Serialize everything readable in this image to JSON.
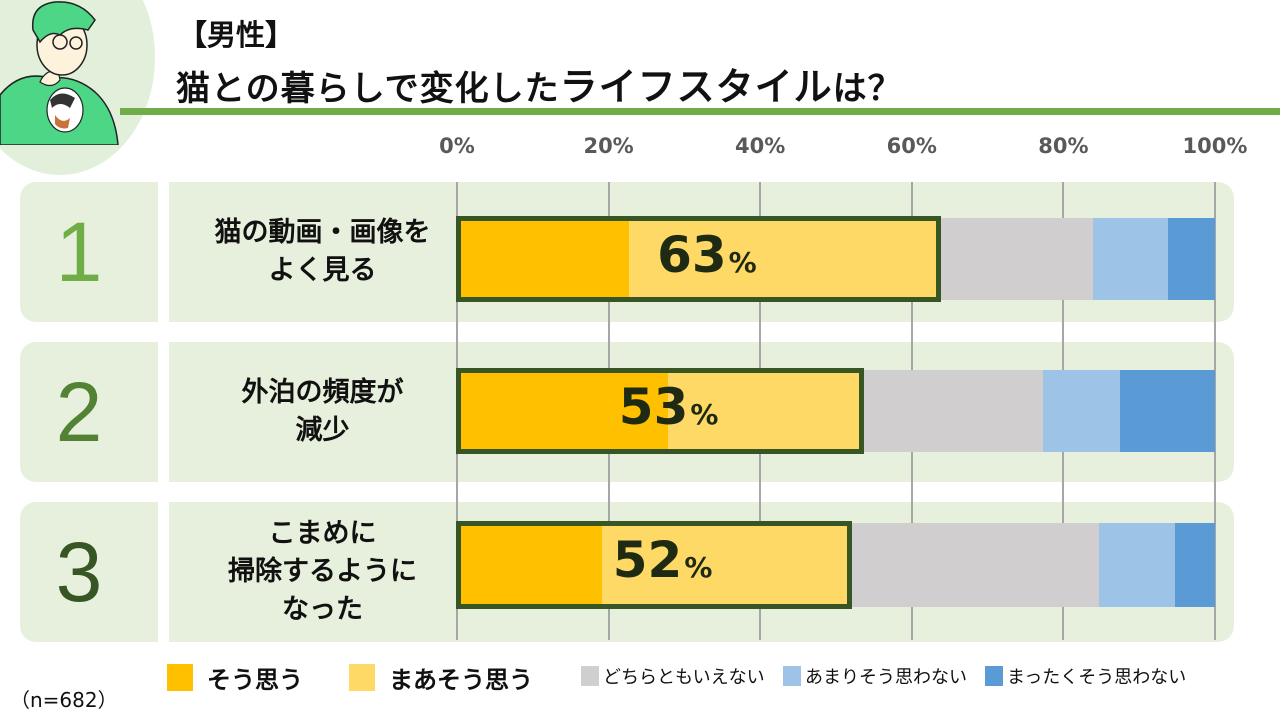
{
  "header": {
    "subtitle": "【男性】",
    "title_part1": "猫との暮らしで変化した",
    "title_part2": "ライフスタイル",
    "title_part3": "は？"
  },
  "chart_data": {
    "type": "bar",
    "orientation": "horizontal-stacked-100",
    "x_ticks": [
      "0%",
      "20%",
      "40%",
      "60%",
      "80%",
      "100%"
    ],
    "xlim": [
      0,
      100
    ],
    "grid": true,
    "legend_position": "bottom",
    "series_names": [
      "そう思う",
      "まあそう思う",
      "どちらともいえない",
      "あまりそう思わない",
      "まったくそう思わない"
    ],
    "colors": [
      "#FFC000",
      "#FFD966",
      "#D0CECE",
      "#9DC3E6",
      "#5B9BD5"
    ],
    "rows": [
      {
        "rank": "1",
        "label": "猫の動画・画像を\nよく見る",
        "values": [
          22.7,
          40.6,
          20.6,
          9.9,
          6.2
        ],
        "total_label": "63",
        "unit": "%"
      },
      {
        "rank": "2",
        "label": "外泊の頻度が\n減少",
        "values": [
          27.8,
          25.4,
          24.1,
          10.2,
          12.5
        ],
        "total_label": "53",
        "unit": "%"
      },
      {
        "rank": "3",
        "label": "こまめに\n掃除するように\nなった",
        "values": [
          19.1,
          32.5,
          33.1,
          10.0,
          5.3
        ],
        "total_label": "52",
        "unit": "%"
      }
    ],
    "rank_colors": [
      "#70AD47",
      "#548235",
      "#375623"
    ],
    "highlight_color": "#375623"
  },
  "footer": {
    "n": "（n=682）"
  }
}
